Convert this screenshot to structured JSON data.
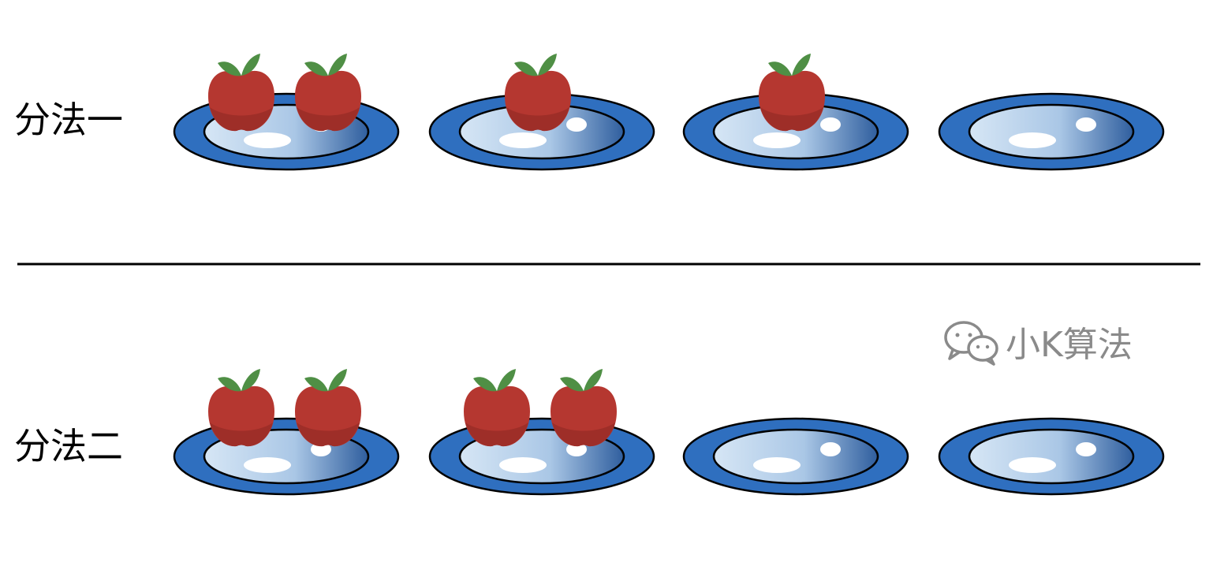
{
  "colors": {
    "plate_outer": "#2f6fbf",
    "plate_inner_light": "#d4e4f4",
    "plate_inner_dark": "#2f5e9e",
    "apple": "#b53730",
    "apple_shade": "#9e2e28",
    "leaf": "#4f8f45",
    "divider": "#000000",
    "watermark": "#8a8a8a"
  },
  "rows": [
    {
      "label": "分法一",
      "plates": [
        2,
        1,
        1,
        0
      ]
    },
    {
      "label": "分法二",
      "plates": [
        2,
        2,
        0,
        0
      ]
    }
  ],
  "watermark": {
    "icon": "wechat-icon",
    "text": "小K算法"
  }
}
